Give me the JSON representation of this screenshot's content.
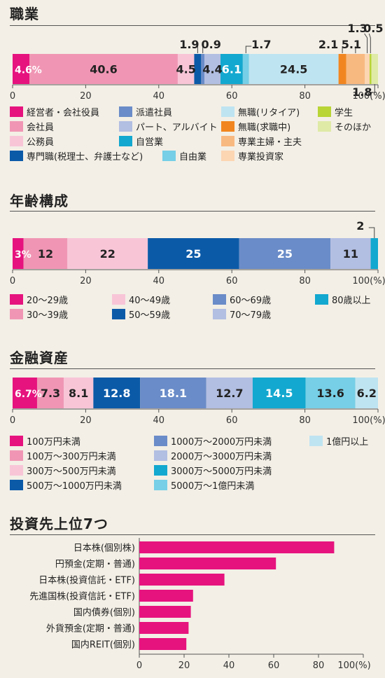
{
  "colors": {
    "magenta": "#e6137e",
    "pink": "#f096b4",
    "lightpink": "#f8c5d7",
    "navy": "#0b5aa8",
    "blue": "#6a8cc8",
    "lavender": "#b2bee2",
    "cyan": "#13a8cf",
    "lightcyan": "#76cfe6",
    "paleblue": "#bfe4f1",
    "orange": "#f18620",
    "peach": "#f8b981",
    "lightpeach": "#fcd5b3",
    "lime": "#b8d435",
    "palelime": "#dfeaa6"
  },
  "sections": [
    {
      "id": "occupation",
      "title": "職業"
    },
    {
      "id": "age",
      "title": "年齢構成"
    },
    {
      "id": "assets",
      "title": "金融資産"
    },
    {
      "id": "top7",
      "title": "投資先上位7つ"
    }
  ],
  "chart_data": [
    {
      "type": "bar",
      "orientation": "horizontal-stacked",
      "title": "職業",
      "ticks": [
        "0",
        "20",
        "40",
        "60",
        "80",
        "100(%)"
      ],
      "xlim": [
        0,
        100
      ],
      "series": [
        {
          "name": "経営者・会社役員",
          "value": 4.6,
          "label": "4.6%",
          "color": "magenta"
        },
        {
          "name": "会社員",
          "value": 40.6,
          "label": "40.6",
          "color": "pink"
        },
        {
          "name": "公務員",
          "value": 4.5,
          "label": "4.5",
          "color": "lightpink"
        },
        {
          "name": "専門職(税理士、弁護士など)",
          "value": 1.9,
          "label": "1.9",
          "color": "navy"
        },
        {
          "name": "派遣社員",
          "value": 0.9,
          "label": "0.9",
          "color": "blue"
        },
        {
          "name": "パート、アルバイト",
          "value": 4.4,
          "label": "4.4",
          "color": "lavender"
        },
        {
          "name": "自営業",
          "value": 6.1,
          "label": "6.1",
          "color": "cyan"
        },
        {
          "name": "自由業",
          "value": 1.7,
          "label": "1.7",
          "color": "lightcyan"
        },
        {
          "name": "無職(リタイア)",
          "value": 24.5,
          "label": "24.5",
          "color": "paleblue"
        },
        {
          "name": "無職(求職中)",
          "value": 2.1,
          "label": "2.1",
          "color": "orange"
        },
        {
          "name": "専業主婦・主夫",
          "value": 5.1,
          "label": "5.1",
          "color": "peach"
        },
        {
          "name": "専業投資家",
          "value": 1.3,
          "label": "1.3",
          "color": "lightpeach"
        },
        {
          "name": "学生",
          "value": 0.5,
          "label": "0.5",
          "color": "lime"
        },
        {
          "name": "そのほか",
          "value": 1.8,
          "label": "1.8",
          "color": "palelime"
        }
      ]
    },
    {
      "type": "bar",
      "orientation": "horizontal-stacked",
      "title": "年齢構成",
      "ticks": [
        "0",
        "20",
        "40",
        "60",
        "80",
        "100(%)"
      ],
      "xlim": [
        0,
        100
      ],
      "series": [
        {
          "name": "20〜29歳",
          "value": 3,
          "label": "3%",
          "color": "magenta"
        },
        {
          "name": "30〜39歳",
          "value": 12,
          "label": "12",
          "color": "pink"
        },
        {
          "name": "40〜49歳",
          "value": 22,
          "label": "22",
          "color": "lightpink"
        },
        {
          "name": "50〜59歳",
          "value": 25,
          "label": "25",
          "color": "navy"
        },
        {
          "name": "60〜69歳",
          "value": 25,
          "label": "25",
          "color": "blue"
        },
        {
          "name": "70〜79歳",
          "value": 11,
          "label": "11",
          "color": "lavender"
        },
        {
          "name": "80歳以上",
          "value": 2,
          "label": "2",
          "color": "cyan"
        }
      ]
    },
    {
      "type": "bar",
      "orientation": "horizontal-stacked",
      "title": "金融資産",
      "ticks": [
        "0",
        "20",
        "40",
        "60",
        "80",
        "100(%)"
      ],
      "xlim": [
        0,
        100
      ],
      "series": [
        {
          "name": "100万円未満",
          "value": 6.7,
          "label": "6.7%",
          "color": "magenta"
        },
        {
          "name": "100万〜300万円未満",
          "value": 7.3,
          "label": "7.3",
          "color": "pink"
        },
        {
          "name": "300万〜500万円未満",
          "value": 8.1,
          "label": "8.1",
          "color": "lightpink"
        },
        {
          "name": "500万〜1000万円未満",
          "value": 12.8,
          "label": "12.8",
          "color": "navy"
        },
        {
          "name": "1000万〜2000万円未満",
          "value": 18.1,
          "label": "18.1",
          "color": "blue"
        },
        {
          "name": "2000万〜3000万円未満",
          "value": 12.7,
          "label": "12.7",
          "color": "lavender"
        },
        {
          "name": "3000万〜5000万円未満",
          "value": 14.5,
          "label": "14.5",
          "color": "cyan"
        },
        {
          "name": "5000万〜1億円未満",
          "value": 13.6,
          "label": "13.6",
          "color": "lightcyan"
        },
        {
          "name": "1億円以上",
          "value": 6.2,
          "label": "6.2",
          "color": "paleblue"
        }
      ]
    },
    {
      "type": "bar",
      "orientation": "horizontal",
      "title": "投資先上位7つ",
      "ticks": [
        "0",
        "20",
        "40",
        "60",
        "80",
        "100(%)"
      ],
      "xlim": [
        0,
        100
      ],
      "color": "magenta",
      "categories": [
        "日本株(個別株)",
        "円預金(定期・普通)",
        "日本株(投資信託・ETF)",
        "先進国株(投資信託・ETF)",
        "国内債券(個別)",
        "外貨預金(定期・普通)",
        "国内REIT(個別)"
      ],
      "values": [
        87,
        61,
        38,
        24,
        23,
        22,
        21
      ]
    }
  ],
  "legends": [
    [
      {
        "label": "経営者・会社役員",
        "color": "magenta"
      },
      {
        "label": "派遣社員",
        "color": "blue"
      },
      {
        "label": "無職(リタイア)",
        "color": "paleblue"
      },
      {
        "label": "学生",
        "color": "lime"
      },
      {
        "label": "会社員",
        "color": "pink"
      },
      {
        "label": "パート、アルバイト",
        "color": "lavender"
      },
      {
        "label": "無職(求職中)",
        "color": "orange"
      },
      {
        "label": "そのほか",
        "color": "palelime"
      },
      {
        "label": "公務員",
        "color": "lightpink"
      },
      {
        "label": "自営業",
        "color": "cyan"
      },
      {
        "label": "専業主婦・主夫",
        "color": "peach"
      },
      {
        "label": "専門職(税理士、弁護士など)",
        "color": "navy"
      },
      {
        "label": "自由業",
        "color": "lightcyan"
      },
      {
        "label": "専業投資家",
        "color": "lightpeach"
      }
    ],
    [
      {
        "label": "20〜29歳",
        "color": "magenta"
      },
      {
        "label": "40〜49歳",
        "color": "lightpink"
      },
      {
        "label": "60〜69歳",
        "color": "blue"
      },
      {
        "label": "80歳以上",
        "color": "cyan"
      },
      {
        "label": "30〜39歳",
        "color": "pink"
      },
      {
        "label": "50〜59歳",
        "color": "navy"
      },
      {
        "label": "70〜79歳",
        "color": "lavender"
      }
    ],
    [
      {
        "label": "100万円未満",
        "color": "magenta"
      },
      {
        "label": "1000万〜2000万円未満",
        "color": "blue"
      },
      {
        "label": "1億円以上",
        "color": "paleblue"
      },
      {
        "label": "100万〜300万円未満",
        "color": "pink"
      },
      {
        "label": "2000万〜3000万円未満",
        "color": "lavender"
      },
      {
        "label": "300万〜500万円未満",
        "color": "lightpink"
      },
      {
        "label": "3000万〜5000万円未満",
        "color": "cyan"
      },
      {
        "label": "500万〜1000万円未満",
        "color": "navy"
      },
      {
        "label": "5000万〜1億円未満",
        "color": "lightcyan"
      }
    ]
  ]
}
